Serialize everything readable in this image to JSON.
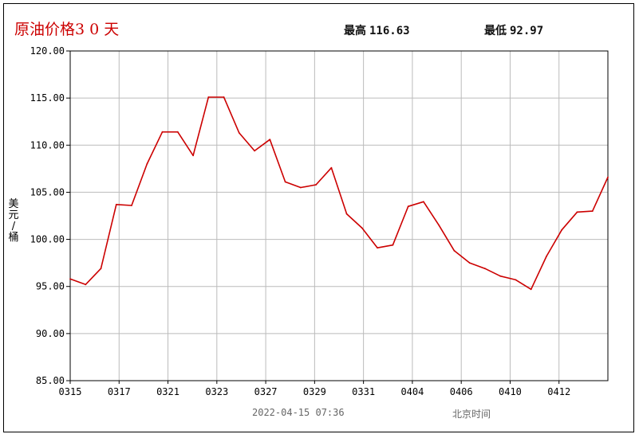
{
  "header": {
    "title": "原油价格3 0 天",
    "high_label": "最高",
    "high_value": "116.63",
    "low_label": "最低",
    "low_value": "92.97"
  },
  "footer": {
    "timestamp": "2022-04-15 07:36",
    "timezone": "北京时间"
  },
  "chart_data": {
    "type": "line",
    "ylabel": "美元/桶",
    "ylim": [
      85,
      120
    ],
    "y_ticks": [
      "85.00",
      "90.00",
      "95.00",
      "100.00",
      "105.00",
      "110.00",
      "115.00",
      "120.00"
    ],
    "x_tick_labels": [
      "0315",
      "0317",
      "0321",
      "0323",
      "0327",
      "0329",
      "0331",
      "0404",
      "0406",
      "0410",
      "0412"
    ],
    "grid": true,
    "line_color": "#cc0000",
    "series": [
      {
        "values": [
          95.8,
          95.2,
          96.9,
          103.7,
          103.6,
          108.0,
          111.4,
          111.4,
          108.9,
          115.1,
          115.1,
          111.3,
          109.4,
          110.6,
          106.1,
          105.5,
          105.8,
          107.6,
          102.7,
          101.2,
          99.1,
          99.4,
          103.5,
          104.0,
          101.5,
          98.8,
          97.5,
          96.9,
          96.1,
          95.7,
          94.7,
          98.2,
          101.0,
          102.9,
          103.0,
          106.6
        ]
      }
    ]
  }
}
